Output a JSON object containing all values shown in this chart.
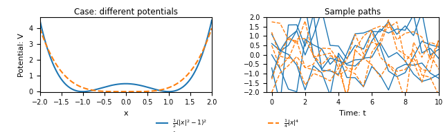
{
  "title_left": "Case: different potentials",
  "title_right": "Sample paths",
  "xlabel_left": "x",
  "ylabel_left": "Potential: V",
  "xlabel_right": "Time: t",
  "xlim_left": [
    -2.0,
    2.0
  ],
  "ylim_left": [
    -0.05,
    4.7
  ],
  "xlim_right": [
    -0.3,
    10.0
  ],
  "ylim_right": [
    -2.0,
    2.0
  ],
  "xticks_left": [
    -2.0,
    -1.5,
    -1.0,
    -0.5,
    0.0,
    0.5,
    1.0,
    1.5,
    2.0
  ],
  "yticks_left": [
    0,
    1,
    2,
    3,
    4
  ],
  "xticks_right": [
    0,
    2,
    4,
    6,
    8,
    10
  ],
  "yticks_right": [
    -2.0,
    -1.5,
    -1.0,
    -0.5,
    0.0,
    0.5,
    1.0,
    1.5,
    2.0
  ],
  "color_blue": "#1f77b4",
  "color_orange": "#ff7f0e",
  "legend_blue": "$\\frac{1}{2}(|x|^2-1)^2$",
  "legend_orange": "$\\frac{1}{4}|x|^4$",
  "t_steps": 21,
  "t_max": 10,
  "n_blue_paths": 5,
  "n_orange_paths": 5,
  "blue_starts": [
    -1.2,
    -0.7,
    0.0,
    0.6,
    1.1
  ],
  "orange_starts": [
    1.75,
    1.2,
    0.5,
    -1.3,
    -2.0
  ]
}
